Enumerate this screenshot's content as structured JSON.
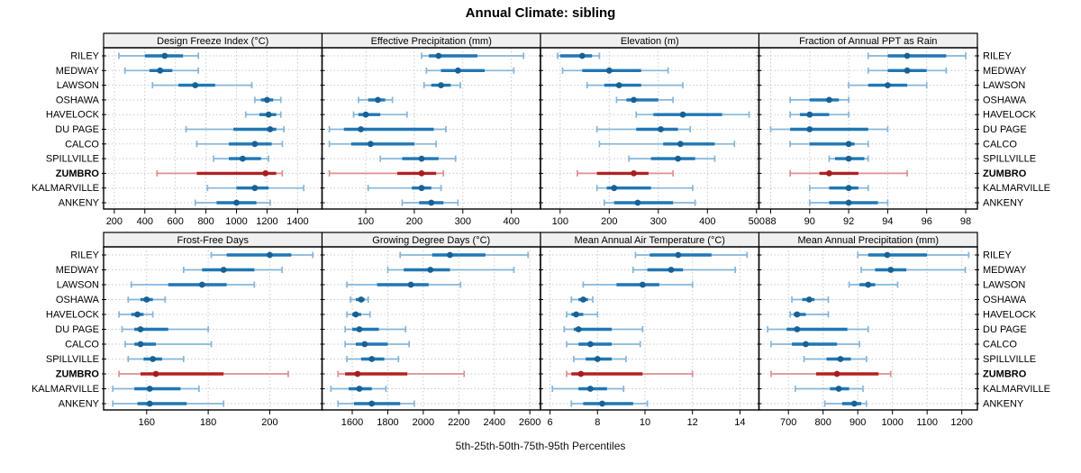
{
  "title": "Annual Climate: sibling",
  "caption": "5th-25th-50th-75th-95th Percentiles",
  "colors": {
    "site_bar": "#1f77b4",
    "site_whisker": "#85b6d9",
    "site_dot": "#186195",
    "highlight_bar": "#b22222",
    "highlight_whisker": "#dd9090",
    "highlight_dot": "#a51f1f",
    "grid": "#c9c9c9",
    "border": "#000000",
    "header_bg": "#f0f0f0",
    "text": "#000000"
  },
  "chart_data": {
    "type": "dot-whisker percentile trellis",
    "percentile_labels": [
      "5th",
      "25th",
      "50th",
      "75th",
      "95th"
    ],
    "sites": [
      "RILEY",
      "MEDWAY",
      "LAWSON",
      "OSHAWA",
      "HAVELOCK",
      "DU PAGE",
      "CALCO",
      "SPILLVILLE",
      "ZUMBRO",
      "KALMARVILLE",
      "ANKENY"
    ],
    "highlight_site": "ZUMBRO",
    "panels": [
      {
        "title": "Design Freeze Index (°C)",
        "grid_row": 0,
        "grid_col": 0,
        "xlim": [
          130,
          1560
        ],
        "ticks": [
          200,
          400,
          600,
          800,
          1000,
          1200,
          1400
        ],
        "values": {
          "RILEY": [
            230,
            400,
            530,
            650,
            750
          ],
          "MEDWAY": [
            270,
            430,
            500,
            580,
            750
          ],
          "LAWSON": [
            450,
            620,
            730,
            860,
            1100
          ],
          "OSHAWA": [
            1120,
            1160,
            1200,
            1240,
            1290
          ],
          "HAVELOCK": [
            1060,
            1150,
            1210,
            1260,
            1290
          ],
          "DU PAGE": [
            670,
            980,
            1220,
            1260,
            1310
          ],
          "CALCO": [
            740,
            950,
            1120,
            1230,
            1300
          ],
          "SPILLVILLE": [
            850,
            950,
            1040,
            1160,
            1210
          ],
          "ZUMBRO": [
            480,
            740,
            1190,
            1260,
            1300
          ],
          "KALMARVILLE": [
            810,
            1000,
            1120,
            1210,
            1440
          ],
          "ANKENY": [
            730,
            870,
            1000,
            1130,
            1220
          ]
        }
      },
      {
        "title": "Effective Precipitation (mm)",
        "grid_row": 0,
        "grid_col": 1,
        "xlim": [
          10,
          460
        ],
        "ticks": [
          100,
          200,
          300,
          400
        ],
        "values": {
          "RILEY": [
            215,
            230,
            250,
            330,
            425
          ],
          "MEDWAY": [
            225,
            255,
            290,
            345,
            405
          ],
          "LAWSON": [
            220,
            235,
            255,
            275,
            295
          ],
          "OSHAWA": [
            85,
            105,
            125,
            140,
            155
          ],
          "HAVELOCK": [
            75,
            85,
            100,
            130,
            185
          ],
          "DU PAGE": [
            25,
            55,
            90,
            240,
            265
          ],
          "CALCO": [
            25,
            70,
            110,
            200,
            245
          ],
          "SPILLVILLE": [
            130,
            175,
            215,
            250,
            285
          ],
          "ZUMBRO": [
            25,
            165,
            215,
            245,
            260
          ],
          "KALMARVILLE": [
            105,
            195,
            215,
            235,
            255
          ],
          "ANKENY": [
            175,
            210,
            235,
            260,
            290
          ]
        }
      },
      {
        "title": "Elevation (m)",
        "grid_row": 0,
        "grid_col": 2,
        "xlim": [
          60,
          505
        ],
        "ticks": [
          100,
          200,
          300,
          400,
          500
        ],
        "values": {
          "RILEY": [
            95,
            100,
            145,
            165,
            180
          ],
          "MEDWAY": [
            105,
            145,
            200,
            265,
            320
          ],
          "LAWSON": [
            155,
            190,
            220,
            265,
            350
          ],
          "OSHAWA": [
            215,
            235,
            250,
            300,
            330
          ],
          "HAVELOCK": [
            255,
            290,
            350,
            430,
            485
          ],
          "DU PAGE": [
            175,
            255,
            305,
            340,
            365
          ],
          "CALCO": [
            180,
            310,
            345,
            415,
            455
          ],
          "SPILLVILLE": [
            240,
            285,
            340,
            375,
            415
          ],
          "ZUMBRO": [
            135,
            175,
            250,
            280,
            330
          ],
          "KALMARVILLE": [
            175,
            195,
            210,
            285,
            370
          ],
          "ANKENY": [
            190,
            210,
            258,
            330,
            375
          ]
        }
      },
      {
        "title": "Fraction of Annual PPT as Rain",
        "grid_row": 0,
        "grid_col": 3,
        "xlim": [
          87.4,
          98.6
        ],
        "ticks": [
          88,
          90,
          92,
          94,
          96,
          98
        ],
        "values": {
          "RILEY": [
            93,
            94,
            95,
            97,
            98
          ],
          "MEDWAY": [
            93,
            94,
            95,
            96,
            97
          ],
          "LAWSON": [
            92,
            93,
            94,
            95,
            96
          ],
          "OSHAWA": [
            89,
            90,
            91,
            91.5,
            92
          ],
          "HAVELOCK": [
            89,
            89.5,
            90,
            91,
            92
          ],
          "DU PAGE": [
            88,
            89,
            90,
            93,
            94
          ],
          "CALCO": [
            89,
            90,
            92,
            92.3,
            93
          ],
          "SPILLVILLE": [
            91,
            91.3,
            92,
            92.8,
            93
          ],
          "ZUMBRO": [
            89,
            90.5,
            91,
            92.5,
            95
          ],
          "KALMARVILLE": [
            90,
            91,
            92,
            92.5,
            93
          ],
          "ANKENY": [
            90,
            91,
            92,
            93.5,
            94
          ]
        }
      },
      {
        "title": "Frost-Free Days",
        "grid_row": 1,
        "grid_col": 0,
        "xlim": [
          146,
          217
        ],
        "ticks": [
          160,
          180,
          200
        ],
        "values": {
          "RILEY": [
            181,
            186,
            200,
            207,
            214
          ],
          "MEDWAY": [
            172,
            178,
            185,
            195,
            204
          ],
          "LAWSON": [
            155,
            167,
            178,
            186,
            195
          ],
          "OSHAWA": [
            154,
            158,
            160,
            162,
            166
          ],
          "HAVELOCK": [
            151,
            155,
            157,
            159,
            162
          ],
          "DU PAGE": [
            152,
            156,
            158,
            167,
            180
          ],
          "CALCO": [
            153,
            156,
            158,
            163,
            181
          ],
          "SPILLVILLE": [
            154,
            159,
            162,
            165,
            172
          ],
          "ZUMBRO": [
            151,
            158,
            163,
            185,
            206
          ],
          "KALMARVILLE": [
            149,
            156,
            161,
            171,
            177
          ],
          "ANKENY": [
            149,
            157,
            161,
            173,
            185
          ]
        }
      },
      {
        "title": "Growing Degree Days (°C)",
        "grid_row": 1,
        "grid_col": 1,
        "xlim": [
          1430,
          2660
        ],
        "ticks": [
          1600,
          1800,
          2000,
          2200,
          2400,
          2600
        ],
        "values": {
          "RILEY": [
            1870,
            2050,
            2150,
            2350,
            2590
          ],
          "MEDWAY": [
            1800,
            1890,
            2040,
            2150,
            2510
          ],
          "LAWSON": [
            1570,
            1740,
            1930,
            2030,
            2210
          ],
          "OSHAWA": [
            1590,
            1620,
            1650,
            1670,
            1690
          ],
          "HAVELOCK": [
            1570,
            1600,
            1620,
            1650,
            1700
          ],
          "DU PAGE": [
            1560,
            1600,
            1640,
            1750,
            1900
          ],
          "CALCO": [
            1560,
            1620,
            1670,
            1800,
            1920
          ],
          "SPILLVILLE": [
            1570,
            1650,
            1710,
            1780,
            1860
          ],
          "ZUMBRO": [
            1520,
            1560,
            1630,
            1910,
            2230
          ],
          "KALMARVILLE": [
            1480,
            1580,
            1640,
            1710,
            1790
          ],
          "ANKENY": [
            1520,
            1610,
            1710,
            1870,
            1950
          ]
        }
      },
      {
        "title": "Mean Annual Air Temperature (°C)",
        "grid_row": 1,
        "grid_col": 2,
        "xlim": [
          5.6,
          14.8
        ],
        "ticks": [
          6,
          8,
          10,
          12,
          14
        ],
        "values": {
          "RILEY": [
            9.6,
            10.2,
            11.4,
            12.8,
            14.3
          ],
          "MEDWAY": [
            9.5,
            10.1,
            11.1,
            11.6,
            13.8
          ],
          "LAWSON": [
            7.4,
            8.8,
            9.9,
            10.6,
            12.0
          ],
          "OSHAWA": [
            6.9,
            7.2,
            7.4,
            7.6,
            7.8
          ],
          "HAVELOCK": [
            6.7,
            6.9,
            7.1,
            7.4,
            8.0
          ],
          "DU PAGE": [
            6.6,
            7.0,
            7.2,
            8.6,
            9.9
          ],
          "CALCO": [
            6.7,
            7.2,
            7.7,
            8.6,
            9.8
          ],
          "SPILLVILLE": [
            7.0,
            7.5,
            8.0,
            8.6,
            9.2
          ],
          "ZUMBRO": [
            6.7,
            6.9,
            7.3,
            9.9,
            12.0
          ],
          "KALMARVILLE": [
            6.1,
            7.2,
            7.7,
            8.4,
            9.1
          ],
          "ANKENY": [
            6.9,
            7.4,
            8.2,
            9.5,
            10.1
          ]
        }
      },
      {
        "title": "Mean Annual Precipitation (mm)",
        "grid_row": 1,
        "grid_col": 3,
        "xlim": [
          615,
          1245
        ],
        "ticks": [
          700,
          800,
          900,
          1000,
          1100,
          1200
        ],
        "values": {
          "RILEY": [
            900,
            930,
            985,
            1100,
            1220
          ],
          "MEDWAY": [
            910,
            950,
            995,
            1040,
            1210
          ],
          "LAWSON": [
            875,
            905,
            930,
            950,
            1015
          ],
          "OSHAWA": [
            710,
            740,
            760,
            775,
            815
          ],
          "HAVELOCK": [
            705,
            715,
            725,
            750,
            815
          ],
          "DU PAGE": [
            640,
            695,
            725,
            870,
            930
          ],
          "CALCO": [
            650,
            710,
            750,
            840,
            905
          ],
          "SPILLVILLE": [
            745,
            810,
            850,
            880,
            925
          ],
          "ZUMBRO": [
            650,
            780,
            840,
            960,
            995
          ],
          "KALMARVILLE": [
            720,
            820,
            845,
            875,
            915
          ],
          "ANKENY": [
            805,
            855,
            890,
            910,
            925
          ]
        }
      }
    ]
  }
}
